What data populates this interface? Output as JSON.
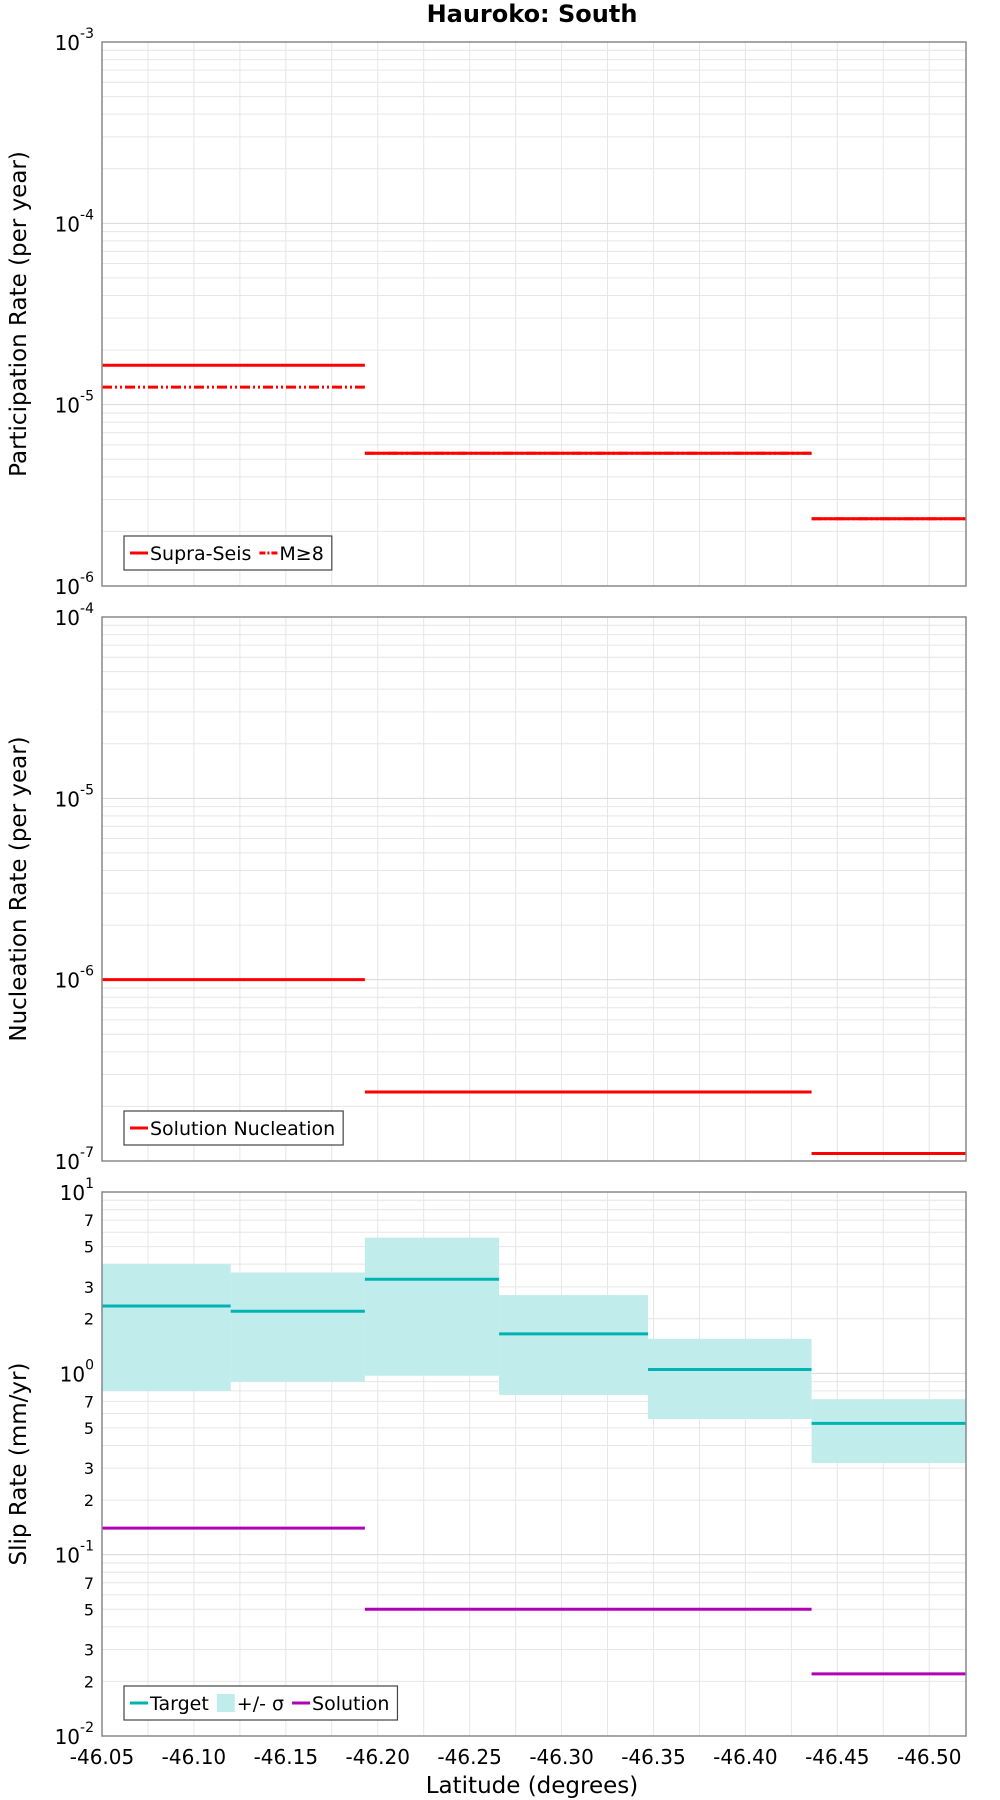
{
  "title": "Hauroko: South",
  "xlabel": "Latitude (degrees)",
  "xlim": [
    -46.05,
    -46.52
  ],
  "xticks": [
    "-46.05",
    "-46.10",
    "-46.15",
    "-46.20",
    "-46.25",
    "-46.30",
    "-46.35",
    "-46.40",
    "-46.45",
    "-46.50"
  ],
  "colors": {
    "red": "#ff0000",
    "teal": "#00b3b3",
    "band": "#c0ecec",
    "magenta": "#b000b8",
    "grid": "#e6e6e6"
  },
  "chart_data": [
    {
      "type": "line",
      "ylabel": "Participation Rate (per year)",
      "yscale": "log",
      "ylim_exp": [
        -6,
        -3
      ],
      "ytick_exps": [
        "-6",
        "-5",
        "-4",
        "-3"
      ],
      "legend": {
        "placement": "bottom-left",
        "entries": [
          "Supra-Seis",
          "M≥8"
        ]
      },
      "series": [
        {
          "name": "Supra-Seis",
          "style": "solid",
          "color": "#ff0000",
          "segments": [
            {
              "x0": -46.05,
              "x1": -46.193,
              "y": 1.65e-05
            },
            {
              "x0": -46.193,
              "x1": -46.436,
              "y": 5.4e-06
            },
            {
              "x0": -46.436,
              "x1": -46.52,
              "y": 2.35e-06
            }
          ]
        },
        {
          "name": "M≥8",
          "style": "dashdot",
          "color": "#ff0000",
          "segments": [
            {
              "x0": -46.05,
              "x1": -46.193,
              "y": 1.25e-05
            },
            {
              "x0": -46.193,
              "x1": -46.436,
              "y": 5.4e-06
            },
            {
              "x0": -46.436,
              "x1": -46.52,
              "y": 2.35e-06
            }
          ]
        }
      ]
    },
    {
      "type": "line",
      "ylabel": "Nucleation Rate (per year)",
      "yscale": "log",
      "ylim_exp": [
        -7,
        -4
      ],
      "ytick_exps": [
        "-7",
        "-6",
        "-5",
        "-4"
      ],
      "legend": {
        "placement": "bottom-left",
        "entries": [
          "Solution Nucleation"
        ]
      },
      "series": [
        {
          "name": "Solution Nucleation",
          "style": "solid",
          "color": "#ff0000",
          "segments": [
            {
              "x0": -46.05,
              "x1": -46.193,
              "y": 1e-06
            },
            {
              "x0": -46.193,
              "x1": -46.436,
              "y": 2.4e-07
            },
            {
              "x0": -46.436,
              "x1": -46.52,
              "y": 1.1e-07
            }
          ]
        }
      ]
    },
    {
      "type": "line",
      "ylabel": "Slip Rate (mm/yr)",
      "yscale": "log",
      "ylim_exp": [
        -2,
        1
      ],
      "ytick_exps": [
        "-2",
        "-1",
        "0",
        "1"
      ],
      "minor_ticks": [
        "2",
        "3",
        "5",
        "7"
      ],
      "legend": {
        "placement": "bottom-left",
        "entries": [
          "Target",
          "+/- σ",
          "Solution"
        ]
      },
      "band": {
        "name": "+/- σ",
        "color": "#c0ecec",
        "segments": [
          {
            "x0": -46.05,
            "x1": -46.12,
            "lo": 0.8,
            "hi": 4.0
          },
          {
            "x0": -46.12,
            "x1": -46.193,
            "lo": 0.9,
            "hi": 3.6
          },
          {
            "x0": -46.193,
            "x1": -46.266,
            "lo": 0.97,
            "hi": 5.6
          },
          {
            "x0": -46.266,
            "x1": -46.347,
            "lo": 0.76,
            "hi": 2.7
          },
          {
            "x0": -46.347,
            "x1": -46.436,
            "lo": 0.56,
            "hi": 1.55
          },
          {
            "x0": -46.436,
            "x1": -46.52,
            "lo": 0.32,
            "hi": 0.72
          }
        ]
      },
      "series": [
        {
          "name": "Target",
          "style": "solid",
          "color": "#00b3b3",
          "segments": [
            {
              "x0": -46.05,
              "x1": -46.12,
              "y": 2.35
            },
            {
              "x0": -46.12,
              "x1": -46.193,
              "y": 2.2
            },
            {
              "x0": -46.193,
              "x1": -46.266,
              "y": 3.3
            },
            {
              "x0": -46.266,
              "x1": -46.347,
              "y": 1.65
            },
            {
              "x0": -46.347,
              "x1": -46.436,
              "y": 1.05
            },
            {
              "x0": -46.436,
              "x1": -46.52,
              "y": 0.53
            }
          ]
        },
        {
          "name": "Solution",
          "style": "solid",
          "color": "#b000b8",
          "segments": [
            {
              "x0": -46.05,
              "x1": -46.193,
              "y": 0.14
            },
            {
              "x0": -46.193,
              "x1": -46.436,
              "y": 0.05
            },
            {
              "x0": -46.436,
              "x1": -46.52,
              "y": 0.022
            }
          ]
        }
      ]
    }
  ]
}
